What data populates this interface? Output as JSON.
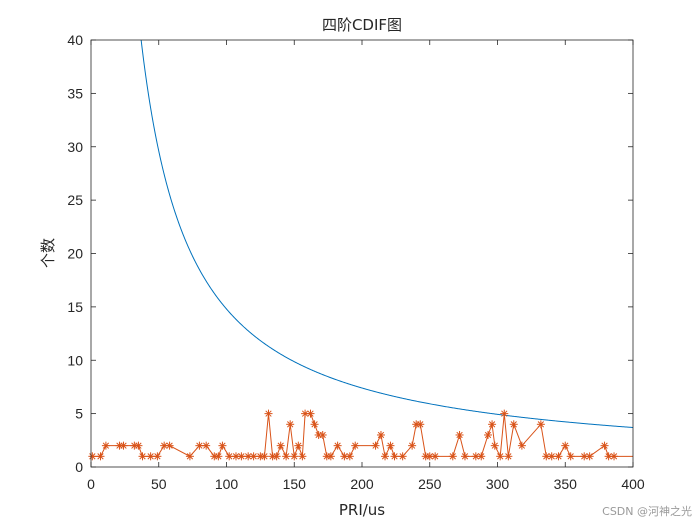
{
  "chart_data": {
    "type": "line",
    "title": "四阶CDIF图",
    "xlabel": "PRI/us",
    "ylabel": "个数",
    "xlim": [
      0,
      400
    ],
    "ylim": [
      0,
      40
    ],
    "xticks": [
      "0",
      "50",
      "100",
      "150",
      "200",
      "250",
      "300",
      "350",
      "400"
    ],
    "yticks": [
      "0",
      "5",
      "10",
      "15",
      "20",
      "25",
      "30",
      "35",
      "40"
    ],
    "grid": false,
    "series": [
      {
        "kind": "threshold-curve",
        "color": "#0072BD",
        "formula": "y = 1480 / x",
        "x_start": 37,
        "x_end": 400
      },
      {
        "kind": "counts",
        "color": "#D95319",
        "marker": "asterisk",
        "points": [
          [
            1,
            1
          ],
          [
            7,
            1
          ],
          [
            11,
            2
          ],
          [
            21,
            2
          ],
          [
            24,
            2
          ],
          [
            32,
            2
          ],
          [
            35,
            2
          ],
          [
            38,
            1
          ],
          [
            44,
            1
          ],
          [
            49,
            1
          ],
          [
            54,
            2
          ],
          [
            58,
            2
          ],
          [
            73,
            1
          ],
          [
            80,
            2
          ],
          [
            85,
            2
          ],
          [
            91,
            1
          ],
          [
            94,
            1
          ],
          [
            97,
            2
          ],
          [
            102,
            1
          ],
          [
            107,
            1
          ],
          [
            111,
            1
          ],
          [
            116,
            1
          ],
          [
            120,
            1
          ],
          [
            125,
            1
          ],
          [
            128,
            1
          ],
          [
            131,
            5
          ],
          [
            134,
            1
          ],
          [
            137,
            1
          ],
          [
            140,
            2
          ],
          [
            144,
            1
          ],
          [
            147,
            4
          ],
          [
            150,
            1
          ],
          [
            153,
            2
          ],
          [
            156,
            1
          ],
          [
            158,
            5
          ],
          [
            162,
            5
          ],
          [
            165,
            4
          ],
          [
            168,
            3
          ],
          [
            171,
            3
          ],
          [
            174,
            1
          ],
          [
            177,
            1
          ],
          [
            182,
            2
          ],
          [
            187,
            1
          ],
          [
            191,
            1
          ],
          [
            195,
            2
          ],
          [
            210,
            2
          ],
          [
            214,
            3
          ],
          [
            217,
            1
          ],
          [
            221,
            2
          ],
          [
            224,
            1
          ],
          [
            230,
            1
          ],
          [
            237,
            2
          ],
          [
            240,
            4
          ],
          [
            243,
            4
          ],
          [
            247,
            1
          ],
          [
            250,
            1
          ],
          [
            254,
            1
          ],
          [
            267,
            1
          ],
          [
            272,
            3
          ],
          [
            276,
            1
          ],
          [
            284,
            1
          ],
          [
            288,
            1
          ],
          [
            293,
            3
          ],
          [
            296,
            4
          ],
          [
            298,
            2
          ],
          [
            302,
            1
          ],
          [
            305,
            5
          ],
          [
            308,
            1
          ],
          [
            312,
            4
          ],
          [
            318,
            2
          ],
          [
            332,
            4
          ],
          [
            336,
            1
          ],
          [
            340,
            1
          ],
          [
            345,
            1
          ],
          [
            350,
            2
          ],
          [
            354,
            1
          ],
          [
            364,
            1
          ],
          [
            368,
            1
          ],
          [
            379,
            2
          ],
          [
            382,
            1
          ],
          [
            386,
            1
          ]
        ]
      }
    ]
  },
  "watermark": "CSDN @河神之光"
}
